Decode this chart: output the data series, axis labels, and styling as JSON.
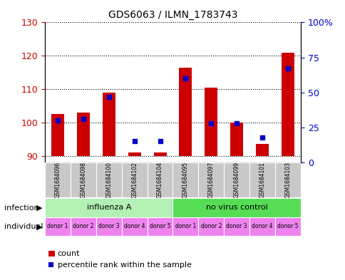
{
  "title": "GDS6063 / ILMN_1783743",
  "samples": [
    "GSM1684096",
    "GSM1684098",
    "GSM1684100",
    "GSM1684102",
    "GSM1684104",
    "GSM1684095",
    "GSM1684097",
    "GSM1684099",
    "GSM1684101",
    "GSM1684103"
  ],
  "count_values": [
    102.5,
    103.0,
    109.0,
    91.0,
    91.0,
    116.5,
    110.5,
    100.0,
    93.5,
    121.0
  ],
  "percentile_values": [
    30,
    31,
    47,
    15,
    15,
    60,
    28,
    28,
    18,
    67
  ],
  "ylim_left": [
    88,
    130
  ],
  "ylim_right": [
    0,
    100
  ],
  "yticks_left": [
    90,
    100,
    110,
    120,
    130
  ],
  "yticks_right": [
    0,
    25,
    50,
    75,
    100
  ],
  "ytick_labels_right": [
    "0",
    "25",
    "50",
    "75",
    "100%"
  ],
  "infection_groups": [
    {
      "label": "influenza A",
      "start": 0,
      "end": 5,
      "color": "#b3f0b3"
    },
    {
      "label": "no virus control",
      "start": 5,
      "end": 10,
      "color": "#55dd55"
    }
  ],
  "individual_labels": [
    "donor 1",
    "donor 2",
    "donor 3",
    "donor 4",
    "donor 5",
    "donor 1",
    "donor 2",
    "donor 3",
    "donor 4",
    "donor 5"
  ],
  "individual_color": "#EE82EE",
  "bar_color": "#CC0000",
  "dot_color": "#0000CC",
  "bar_bottom": 90,
  "grid_color": "#000000",
  "label_color_left": "#CC0000",
  "label_color_right": "#0000CC",
  "infection_row_label": "infection",
  "individual_row_label": "individual",
  "legend_count_label": "count",
  "legend_percentile_label": "percentile rank within the sample",
  "box_color": "#C8C8C8"
}
